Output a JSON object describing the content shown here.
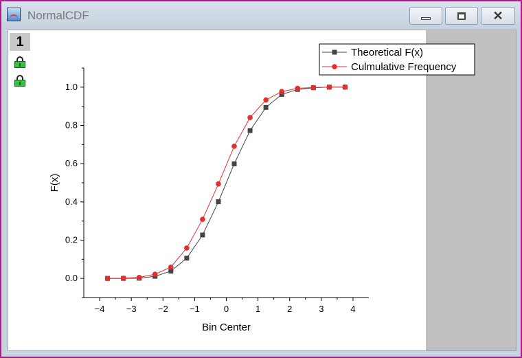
{
  "window": {
    "title": "NormalCDF",
    "layer_label": "1",
    "colors": {
      "border": "#b2168f",
      "titlebar": "#cfd9e4"
    }
  },
  "chart_data": {
    "type": "line",
    "title": "",
    "xlabel": "Bin Center",
    "ylabel": "F(x)",
    "xlim": [
      -4.5,
      4.5
    ],
    "ylim": [
      -0.1,
      1.1
    ],
    "xticks": [
      -4,
      -3,
      -2,
      -1,
      0,
      1,
      2,
      3,
      4
    ],
    "xtick_labels": [
      "−4",
      "−3",
      "−2",
      "−1",
      "0",
      "1",
      "2",
      "3",
      "4"
    ],
    "yticks": [
      0.0,
      0.2,
      0.4,
      0.6,
      0.8,
      1.0
    ],
    "ytick_labels": [
      "0.0",
      "0.2",
      "0.4",
      "0.6",
      "0.8",
      "1.0"
    ],
    "grid": false,
    "legend_position": "top-right",
    "x": [
      -3.75,
      -3.25,
      -2.75,
      -2.25,
      -1.75,
      -1.25,
      -0.75,
      -0.25,
      0.25,
      0.75,
      1.25,
      1.75,
      2.25,
      2.75,
      3.25,
      3.75
    ],
    "series": [
      {
        "name": "Theoretical F(x)",
        "color": "#444444",
        "marker": "square",
        "values": [
          0.0,
          0.0,
          0.001,
          0.011,
          0.038,
          0.106,
          0.227,
          0.401,
          0.599,
          0.773,
          0.894,
          0.962,
          0.988,
          0.997,
          1.0,
          1.0
        ]
      },
      {
        "name": "Culmulative Frequency",
        "color": "#e03030",
        "marker": "circle",
        "values": [
          0.0,
          0.001,
          0.005,
          0.022,
          0.059,
          0.159,
          0.309,
          0.494,
          0.691,
          0.841,
          0.933,
          0.977,
          0.994,
          0.998,
          1.0,
          1.0
        ]
      }
    ]
  }
}
